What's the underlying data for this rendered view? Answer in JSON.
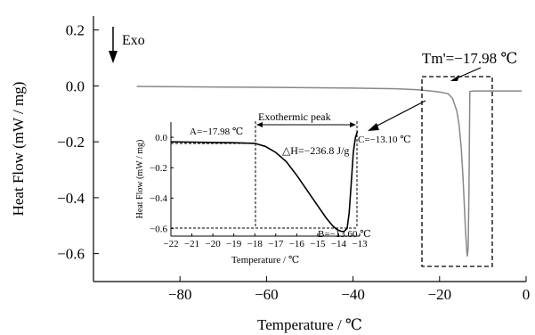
{
  "chart_data": [
    {
      "type": "line",
      "role": "main",
      "xlabel": "Temperature / ℃",
      "ylabel": "Heat Flow (mW / mg)",
      "xlim": [
        -100,
        0
      ],
      "ylim": [
        -0.7,
        0.25
      ],
      "x_ticks": [
        -80,
        -60,
        -40,
        -20,
        0
      ],
      "x_tick_labels": [
        "−80",
        "−60",
        "−40",
        "−20",
        "0"
      ],
      "y_ticks": [
        0.2,
        0.0,
        -0.2,
        -0.4,
        -0.6
      ],
      "y_tick_labels": [
        "0.2",
        "0.0",
        "−0.2",
        "−0.4",
        "−0.6"
      ],
      "grid": false,
      "series": [
        {
          "color": "#888888",
          "x": [
            -90,
            -80,
            -60,
            -40,
            -30,
            -25,
            -22,
            -20,
            -18,
            -17,
            -16,
            -15.5,
            -15,
            -14.6,
            -14.3,
            -14.0,
            -13.8,
            -13.6,
            -13.4,
            -13.2,
            -13.1,
            -13.0,
            -12,
            -8,
            -1
          ],
          "y": [
            -0.002,
            -0.003,
            -0.005,
            -0.008,
            -0.01,
            -0.014,
            -0.018,
            -0.022,
            -0.028,
            -0.045,
            -0.09,
            -0.14,
            -0.22,
            -0.32,
            -0.42,
            -0.52,
            -0.57,
            -0.61,
            -0.58,
            -0.38,
            -0.2,
            -0.02,
            -0.018,
            -0.018,
            -0.018
          ]
        }
      ],
      "annotations": {
        "exo": "Exo",
        "tm": "Tm'=−17.98 ℃"
      }
    },
    {
      "type": "line",
      "role": "inset",
      "xlabel": "Temperature / ℃",
      "ylabel": "Heat Flow (mW / mg)",
      "xlim": [
        -22,
        -13
      ],
      "ylim": [
        -0.65,
        0.1
      ],
      "x_ticks": [
        -22,
        -21,
        -20,
        -19,
        -18,
        -17,
        -16,
        -15,
        -14,
        -13
      ],
      "x_tick_labels": [
        "−22",
        "−21",
        "−20",
        "−19",
        "−18",
        "−17",
        "−16",
        "−15",
        "−14",
        "−13"
      ],
      "y_ticks": [
        0.0,
        -0.2,
        -0.4,
        -0.6
      ],
      "y_tick_labels": [
        "0.0",
        "−0.2",
        "−0.4",
        "−0.6"
      ],
      "series": [
        {
          "color": "#000000",
          "x": [
            -22,
            -21,
            -20,
            -19,
            -18,
            -17.5,
            -17,
            -16.5,
            -16,
            -15.5,
            -15,
            -14.6,
            -14.3,
            -14.1,
            -13.9,
            -13.75,
            -13.6,
            -13.5,
            -13.4,
            -13.3,
            -13.2,
            -13.1
          ],
          "y": [
            -0.03,
            -0.032,
            -0.034,
            -0.036,
            -0.04,
            -0.06,
            -0.1,
            -0.16,
            -0.25,
            -0.35,
            -0.45,
            -0.53,
            -0.58,
            -0.605,
            -0.618,
            -0.62,
            -0.6,
            -0.5,
            -0.3,
            -0.1,
            0.0,
            0.04
          ]
        }
      ],
      "annotations": {
        "a": "A=−17.98 ℃",
        "b": "B=−13.60 ℃",
        "c": "C=−13.10 ℃",
        "peak": "Exothermic peak",
        "dh": "△H=−236.8 J/g"
      }
    }
  ]
}
